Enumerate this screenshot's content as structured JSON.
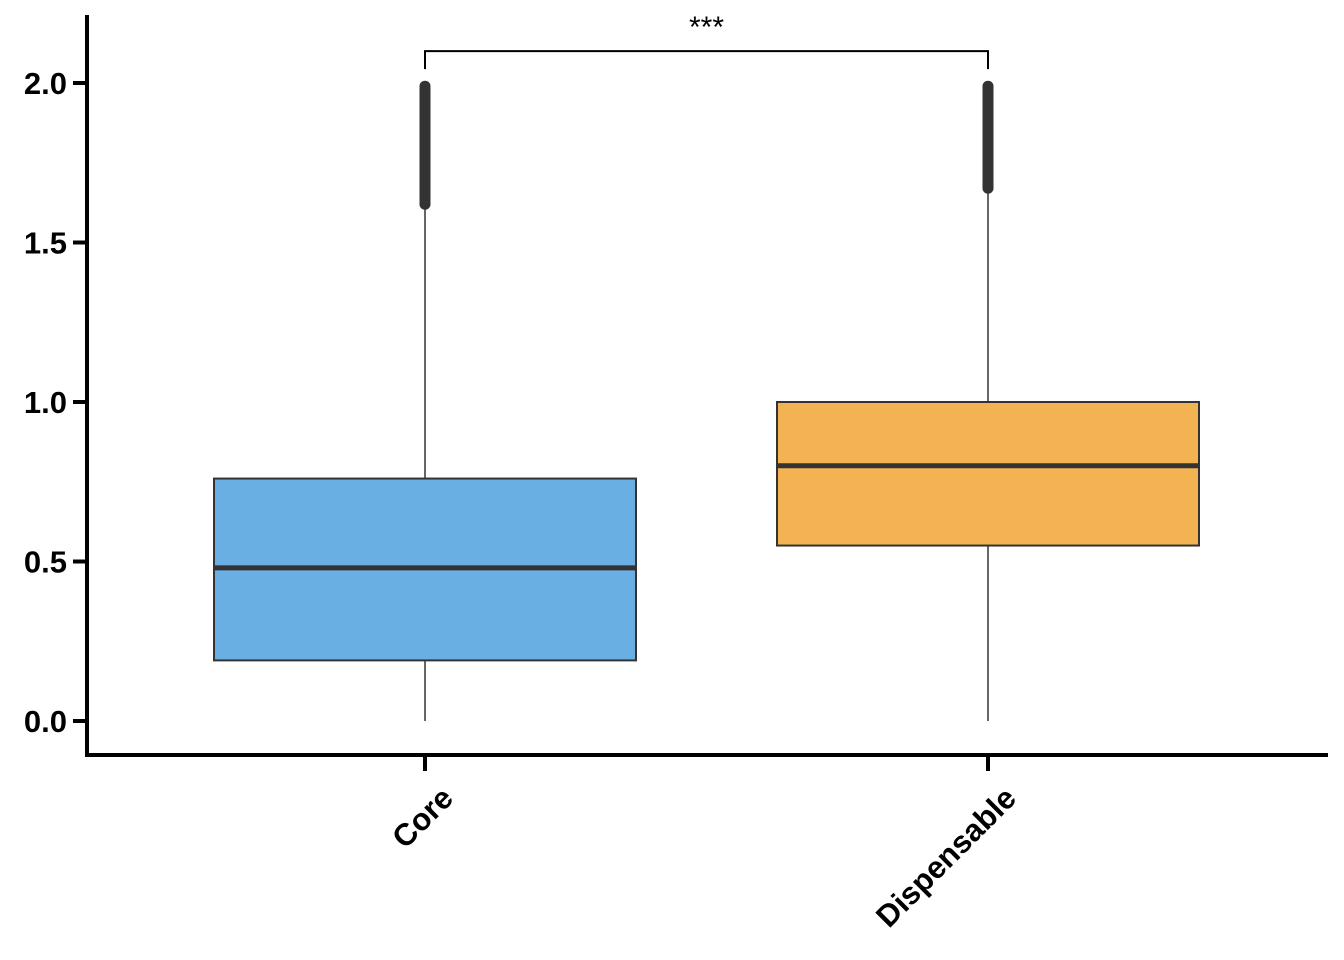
{
  "chart_data": {
    "type": "box",
    "categories": [
      "Core",
      "Dispensable"
    ],
    "ylim": [
      -0.1,
      2.2
    ],
    "yticks": [
      0.0,
      0.5,
      1.0,
      1.5,
      2.0
    ],
    "ytick_labels": [
      "0.0",
      "0.5",
      "1.0",
      "1.5",
      "2.0"
    ],
    "xlabel": "",
    "ylabel": "",
    "title": "",
    "grid": false,
    "legend": "none",
    "boxes": [
      {
        "category": "Core",
        "whisker_low": 0.0,
        "q1": 0.19,
        "median": 0.48,
        "q3": 0.76,
        "whisker_high": 1.62,
        "outliers_from": 1.62,
        "outliers_to": 1.99,
        "color": "#69AFE4"
      },
      {
        "category": "Dispensable",
        "whisker_low": 0.0,
        "q1": 0.55,
        "median": 0.8,
        "q3": 1.0,
        "whisker_high": 1.67,
        "outliers_from": 1.67,
        "outliers_to": 1.99,
        "color": "#F4B352"
      }
    ],
    "significance": {
      "between": [
        "Core",
        "Dispensable"
      ],
      "label": "***",
      "y": 2.1
    }
  }
}
